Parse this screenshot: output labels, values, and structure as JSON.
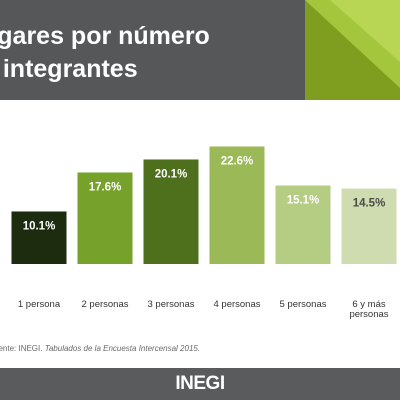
{
  "header": {
    "title_line1": "ogares por número",
    "title_line2": "e integrantes"
  },
  "colors": {
    "header_bg": "#565759",
    "accent_green": "#8fb22a",
    "bar_colors": [
      "#1d2b0f",
      "#76a12b",
      "#4e6f1c",
      "#9bb956",
      "#b5cc83",
      "#cfdcb0"
    ]
  },
  "chart_data": {
    "type": "bar",
    "categories": [
      "1 persona",
      "2 personas",
      "3 personas",
      "4 personas",
      "5 personas",
      "6 y más personas"
    ],
    "category_lines": [
      [
        "1 persona"
      ],
      [
        "2 personas"
      ],
      [
        "3 personas"
      ],
      [
        "4 personas"
      ],
      [
        "5 personas"
      ],
      [
        "6 y más",
        "personas"
      ]
    ],
    "values": [
      10.1,
      17.6,
      20.1,
      22.6,
      15.1,
      14.5
    ],
    "value_labels": [
      "10.1%",
      "17.6%",
      "20.1%",
      "22.6%",
      "15.1%",
      "14.5%"
    ],
    "ylim": [
      0,
      25
    ],
    "grid": false,
    "legend": false
  },
  "source": {
    "prefix": "uente: INEGI. ",
    "citation": "Tabulados de la Encuesta Intercensal 2015."
  },
  "footer": {
    "logo_text": "INEGI"
  }
}
